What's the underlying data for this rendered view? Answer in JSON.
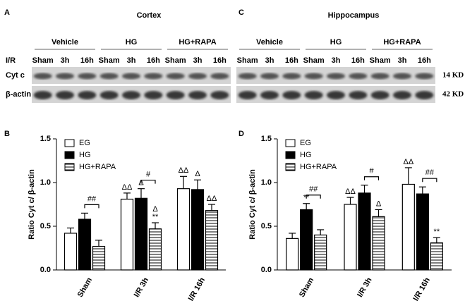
{
  "blots": [
    {
      "panel": "A",
      "title": "Cortex",
      "groups": [
        "Vehicle",
        "HG",
        "HG+RAPA"
      ],
      "row_label": "I/R",
      "lanes": [
        "Sham",
        "3h",
        "16h"
      ],
      "rows": [
        "Cyt c",
        "β-actin"
      ]
    },
    {
      "panel": "C",
      "title": "Hippocampus",
      "groups": [
        "Vehicle",
        "HG",
        "HG+RAPA"
      ],
      "lanes": [
        "Sham",
        "3h",
        "16h"
      ],
      "sizes": [
        "14 KD",
        "42 KD"
      ]
    }
  ],
  "chart_data": [
    {
      "type": "bar",
      "panel": "B",
      "ylabel": "Ratio  Cyt c/ β-actin",
      "legend": "upper left",
      "categories": [
        "Sham",
        "I/R 3h",
        "I/R 16h"
      ],
      "series": [
        {
          "name": "EG",
          "color": "#ffffff",
          "values": [
            0.42,
            0.81,
            0.93
          ],
          "errors": [
            0.06,
            0.07,
            0.14
          ],
          "annotations": [
            [],
            [
              "ΔΔ"
            ],
            [
              "ΔΔ"
            ]
          ]
        },
        {
          "name": "HG",
          "color": "#000000",
          "values": [
            0.58,
            0.82,
            0.92
          ],
          "errors": [
            0.07,
            0.11,
            0.11
          ],
          "annotations": [
            [],
            [
              "Δ"
            ],
            [
              "Δ"
            ]
          ]
        },
        {
          "name": "HG+RAPA",
          "color": "#ffffff",
          "pattern": "hatch",
          "values": [
            0.27,
            0.47,
            0.68
          ],
          "errors": [
            0.07,
            0.07,
            0.07
          ],
          "annotations": [
            [],
            [
              "**",
              "Δ"
            ],
            [
              "ΔΔ"
            ]
          ]
        }
      ],
      "comparisons": [
        {
          "category": "Sham",
          "series": [
            "HG",
            "HG+RAPA"
          ],
          "label": "##"
        },
        {
          "category": "I/R 3h",
          "series": [
            "HG",
            "HG+RAPA"
          ],
          "label": "#"
        }
      ],
      "ylim": [
        0,
        1.5
      ],
      "yticks": [
        {
          "value": 0,
          "label": "0.0"
        },
        {
          "value": 0.5,
          "label": "0.5"
        },
        {
          "value": 1,
          "label": "1.0"
        },
        {
          "value": 1.5,
          "label": "1.5"
        }
      ]
    },
    {
      "type": "bar",
      "panel": "D",
      "ylabel": "Ratio  Cyt c/ β-actin",
      "legend": "upper left",
      "categories": [
        "Sham",
        "I/R 3h",
        "I/R 16h"
      ],
      "series": [
        {
          "name": "EG",
          "color": "#ffffff",
          "values": [
            0.36,
            0.75,
            0.98
          ],
          "errors": [
            0.06,
            0.08,
            0.19
          ],
          "annotations": [
            [],
            [
              "ΔΔ"
            ],
            [
              "ΔΔ"
            ]
          ]
        },
        {
          "name": "HG",
          "color": "#000000",
          "values": [
            0.69,
            0.88,
            0.87
          ],
          "errors": [
            0.07,
            0.09,
            0.08
          ],
          "annotations": [
            [
              "**"
            ],
            [],
            []
          ]
        },
        {
          "name": "HG+RAPA",
          "color": "#ffffff",
          "pattern": "hatch",
          "values": [
            0.4,
            0.61,
            0.31
          ],
          "errors": [
            0.06,
            0.08,
            0.06
          ],
          "annotations": [
            [],
            [
              "Δ"
            ],
            [
              "**"
            ]
          ]
        }
      ],
      "comparisons": [
        {
          "category": "Sham",
          "series": [
            "HG",
            "HG+RAPA"
          ],
          "label": "##"
        },
        {
          "category": "I/R 3h",
          "series": [
            "HG",
            "HG+RAPA"
          ],
          "label": "#"
        },
        {
          "category": "I/R 16h",
          "series": [
            "HG",
            "HG+RAPA"
          ],
          "label": "##"
        }
      ],
      "ylim": [
        0,
        1.5
      ],
      "yticks": [
        {
          "value": 0,
          "label": "0.0"
        },
        {
          "value": 0.5,
          "label": "0.5"
        },
        {
          "value": 1,
          "label": "1.0"
        },
        {
          "value": 1.5,
          "label": "1.5"
        }
      ]
    }
  ]
}
